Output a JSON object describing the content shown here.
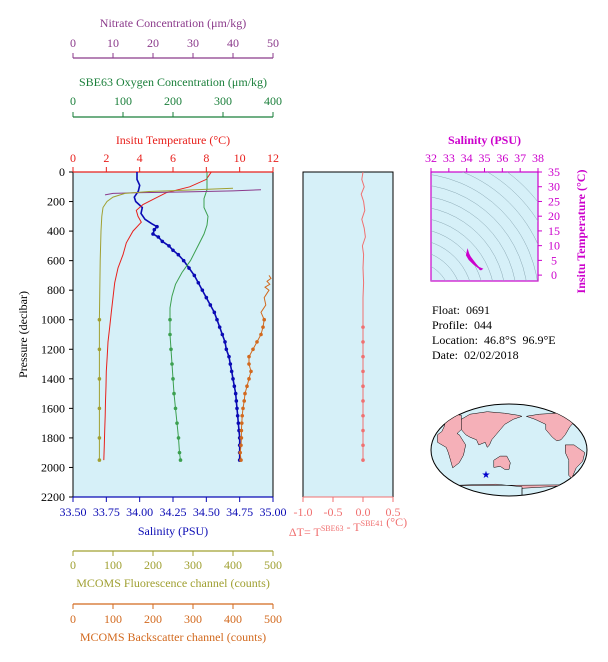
{
  "chart_data": {
    "type": "line",
    "pressure_axis": {
      "label": "Pressure (decibar)",
      "ticks": [
        0,
        200,
        400,
        600,
        800,
        1000,
        1200,
        1400,
        1600,
        1800,
        2000,
        2200
      ],
      "range": [
        0,
        2200
      ],
      "inverted": true
    },
    "axes": {
      "nitrate": {
        "label": "Nitrate Concentration (μm/kg)",
        "ticks": [
          0,
          10,
          20,
          30,
          40,
          50
        ],
        "range": [
          0,
          50
        ],
        "color": "#8b3a8b"
      },
      "oxygen": {
        "label": "SBE63 Oxygen Concentration (μm/kg)",
        "ticks": [
          0,
          100,
          200,
          300,
          400
        ],
        "range": [
          0,
          400
        ],
        "color": "#1a7f3a"
      },
      "temperature": {
        "label": "Insitu Temperature (°C)",
        "ticks": [
          0,
          2,
          4,
          6,
          8,
          10,
          12
        ],
        "range": [
          0,
          12
        ],
        "color": "#e8201c"
      },
      "salinity": {
        "label": "Salinity (PSU)",
        "ticks": [
          "33.50",
          "33.75",
          "34.00",
          "34.25",
          "34.50",
          "34.75",
          "35.00"
        ],
        "range": [
          33.5,
          35.0
        ],
        "color": "#0a0ab4"
      },
      "fluorescence": {
        "label": "MCOMS Fluorescence channel (counts)",
        "ticks": [
          0,
          100,
          200,
          300,
          400,
          500
        ],
        "range": [
          0,
          500
        ],
        "color": "#a0a032"
      },
      "backscatter": {
        "label": "MCOMS Backscatter channel (counts)",
        "ticks": [
          0,
          100,
          200,
          300,
          400,
          500
        ],
        "range": [
          0,
          500
        ],
        "color": "#d2691e"
      },
      "delta_t": {
        "label_prefix": "ΔT= T",
        "sup1": "SBE63",
        "mid": " - T",
        "sup2": "SBE41",
        "suffix": " (°C)",
        "ticks": [
          "-1.0",
          "-0.5",
          "0.0",
          "0.5"
        ],
        "range": [
          -1.0,
          0.5
        ],
        "color": "#f07070"
      }
    },
    "series": [
      {
        "name": "Salinity",
        "color": "#0a0ab4",
        "points": [
          [
            33.98,
            0
          ],
          [
            33.98,
            50
          ],
          [
            34.0,
            90
          ],
          [
            33.99,
            130
          ],
          [
            33.96,
            170
          ],
          [
            33.97,
            200
          ],
          [
            34.02,
            240
          ],
          [
            34.01,
            280
          ],
          [
            34.04,
            320
          ],
          [
            34.09,
            350
          ],
          [
            34.13,
            370
          ],
          [
            34.11,
            390
          ],
          [
            34.1,
            420
          ],
          [
            34.14,
            440
          ],
          [
            34.17,
            470
          ],
          [
            34.22,
            500
          ],
          [
            34.25,
            530
          ],
          [
            34.29,
            560
          ],
          [
            34.33,
            600
          ],
          [
            34.37,
            650
          ],
          [
            34.41,
            700
          ],
          [
            34.44,
            750
          ],
          [
            34.47,
            800
          ],
          [
            34.5,
            850
          ],
          [
            34.53,
            900
          ],
          [
            34.56,
            950
          ],
          [
            34.58,
            1000
          ],
          [
            34.6,
            1050
          ],
          [
            34.62,
            1100
          ],
          [
            34.64,
            1150
          ],
          [
            34.65,
            1200
          ],
          [
            34.67,
            1250
          ],
          [
            34.68,
            1300
          ],
          [
            34.69,
            1350
          ],
          [
            34.7,
            1400
          ],
          [
            34.71,
            1450
          ],
          [
            34.72,
            1500
          ],
          [
            34.725,
            1550
          ],
          [
            34.73,
            1600
          ],
          [
            34.735,
            1650
          ],
          [
            34.74,
            1700
          ],
          [
            34.745,
            1750
          ],
          [
            34.75,
            1800
          ],
          [
            34.75,
            1850
          ],
          [
            34.75,
            1900
          ],
          [
            34.75,
            1950
          ]
        ],
        "marker_from": 360
      },
      {
        "name": "Temperature",
        "color": "#e8201c",
        "points": [
          [
            8.3,
            0
          ],
          [
            8.0,
            50
          ],
          [
            7.0,
            100
          ],
          [
            5.6,
            140
          ],
          [
            4.9,
            180
          ],
          [
            4.2,
            220
          ],
          [
            3.8,
            260
          ],
          [
            3.9,
            300
          ],
          [
            4.1,
            340
          ],
          [
            3.6,
            400
          ],
          [
            3.2,
            480
          ],
          [
            3.0,
            560
          ],
          [
            2.7,
            650
          ],
          [
            2.5,
            750
          ],
          [
            2.4,
            850
          ],
          [
            2.3,
            950
          ],
          [
            2.2,
            1050
          ],
          [
            2.1,
            1150
          ],
          [
            2.05,
            1250
          ],
          [
            2.0,
            1350
          ],
          [
            1.98,
            1450
          ],
          [
            1.95,
            1550
          ],
          [
            1.93,
            1650
          ],
          [
            1.9,
            1750
          ],
          [
            1.88,
            1850
          ],
          [
            1.85,
            1950
          ]
        ]
      },
      {
        "name": "Oxygen",
        "color": "#3ca050",
        "points": [
          [
            268,
            0
          ],
          [
            268,
            60
          ],
          [
            268,
            120
          ],
          [
            262,
            180
          ],
          [
            262,
            240
          ],
          [
            270,
            300
          ],
          [
            268,
            360
          ],
          [
            262,
            420
          ],
          [
            250,
            500
          ],
          [
            235,
            600
          ],
          [
            218,
            680
          ],
          [
            205,
            760
          ],
          [
            198,
            840
          ],
          [
            194,
            920
          ],
          [
            194,
            1000
          ],
          [
            194,
            1100
          ],
          [
            196,
            1200
          ],
          [
            198,
            1300
          ],
          [
            200,
            1400
          ],
          [
            202,
            1500
          ],
          [
            205,
            1600
          ],
          [
            208,
            1700
          ],
          [
            211,
            1800
          ],
          [
            213,
            1900
          ],
          [
            215,
            1950
          ]
        ],
        "marker_from": 1000
      },
      {
        "name": "Nitrate",
        "color": "#8b3a8b",
        "points": [
          [
            47,
            120
          ],
          [
            40,
            128
          ],
          [
            30,
            134
          ],
          [
            22,
            138
          ],
          [
            15,
            141
          ],
          [
            10,
            145
          ],
          [
            8,
            155
          ]
        ]
      },
      {
        "name": "Fluorescence",
        "color": "#a0a032",
        "points": [
          [
            400,
            110
          ],
          [
            330,
            118
          ],
          [
            260,
            125
          ],
          [
            190,
            132
          ],
          [
            130,
            145
          ],
          [
            100,
            170
          ],
          [
            85,
            200
          ],
          [
            75,
            240
          ],
          [
            72,
            300
          ],
          [
            70,
            400
          ],
          [
            68,
            600
          ],
          [
            67,
            800
          ],
          [
            66,
            1000
          ],
          [
            66,
            1200
          ],
          [
            66,
            1400
          ],
          [
            66,
            1600
          ],
          [
            66,
            1800
          ],
          [
            66,
            1950
          ]
        ],
        "marker_from": 1000
      },
      {
        "name": "Backscatter",
        "color": "#d2691e",
        "points": [
          [
            420,
            1950
          ],
          [
            418,
            1900
          ],
          [
            420,
            1850
          ],
          [
            421,
            1800
          ],
          [
            421,
            1750
          ],
          [
            422,
            1700
          ],
          [
            423,
            1650
          ],
          [
            425,
            1600
          ],
          [
            428,
            1550
          ],
          [
            430,
            1500
          ],
          [
            435,
            1450
          ],
          [
            440,
            1400
          ],
          [
            445,
            1350
          ],
          [
            440,
            1300
          ],
          [
            440,
            1250
          ],
          [
            450,
            1200
          ],
          [
            460,
            1150
          ],
          [
            470,
            1100
          ],
          [
            475,
            1050
          ],
          [
            478,
            1000
          ],
          [
            470,
            950
          ],
          [
            482,
            900
          ],
          [
            478,
            850
          ],
          [
            490,
            800
          ],
          [
            480,
            780
          ],
          [
            492,
            760
          ],
          [
            485,
            740
          ],
          [
            495,
            720
          ],
          [
            490,
            700
          ]
        ],
        "marker_from": 1000
      },
      {
        "name": "Delta T",
        "color": "#f07070",
        "points": [
          [
            0.0,
            0
          ],
          [
            -0.02,
            50
          ],
          [
            0.02,
            100
          ],
          [
            -0.03,
            150
          ],
          [
            0.01,
            200
          ],
          [
            0.03,
            260
          ],
          [
            -0.02,
            320
          ],
          [
            0.02,
            380
          ],
          [
            0.04,
            440
          ],
          [
            -0.01,
            500
          ],
          [
            0.01,
            560
          ],
          [
            0.0,
            650
          ],
          [
            0.01,
            750
          ],
          [
            0.0,
            850
          ],
          [
            0.0,
            950
          ],
          [
            0.0,
            1050
          ],
          [
            0.0,
            1150
          ],
          [
            0.0,
            1250
          ],
          [
            0.0,
            1350
          ],
          [
            0.0,
            1450
          ],
          [
            0.0,
            1550
          ],
          [
            0.0,
            1650
          ],
          [
            0.0,
            1750
          ],
          [
            0.0,
            1850
          ],
          [
            0.0,
            1950
          ]
        ],
        "marker_from": 1000
      }
    ],
    "ts_diagram": {
      "xlabel": "Salinity (PSU)",
      "ylabel": "Insitu Temperature (°C)",
      "xticks": [
        32,
        33,
        34,
        35,
        36,
        37,
        38
      ],
      "yticks": [
        0,
        5,
        10,
        15,
        20,
        25,
        30,
        35
      ],
      "xlim": [
        32,
        38
      ],
      "ylim": [
        -2,
        35
      ],
      "color": "#cc00cc",
      "points": [
        [
          34.05,
          8.2
        ],
        [
          34.1,
          7.2
        ],
        [
          34.2,
          6.1
        ],
        [
          34.35,
          4.9
        ],
        [
          34.5,
          3.7
        ],
        [
          34.6,
          3.0
        ],
        [
          34.7,
          2.4
        ],
        [
          34.75,
          2.0
        ],
        [
          34.8,
          1.9
        ],
        [
          34.85,
          2.1
        ],
        [
          34.65,
          2.6
        ],
        [
          34.4,
          3.8
        ],
        [
          34.15,
          5.3
        ],
        [
          34.0,
          6.8
        ]
      ]
    },
    "map": {
      "float_position": {
        "lat": -46.8,
        "lon": 96.9
      }
    }
  },
  "info": {
    "float": "Float:  0691",
    "profile": "Profile:  044",
    "location": "Location:  46.8°S  96.9°E",
    "date": "Date:  02/02/2018"
  }
}
